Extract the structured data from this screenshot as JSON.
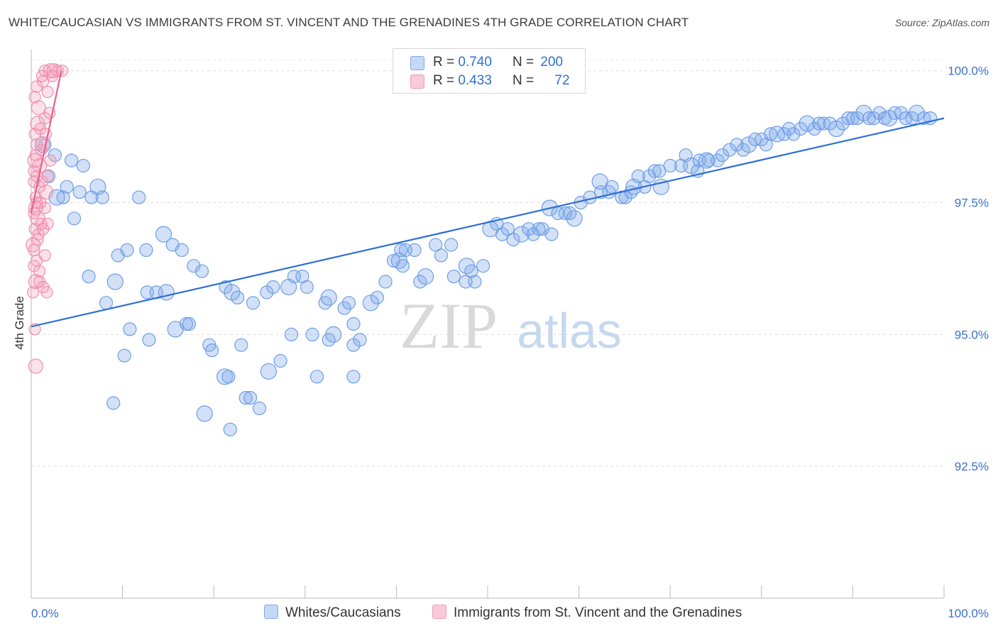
{
  "title": "WHITE/CAUCASIAN VS IMMIGRANTS FROM ST. VINCENT AND THE GRENADINES 4TH GRADE CORRELATION CHART",
  "source": "Source: ZipAtlas.com",
  "watermark": {
    "zip": "ZIP",
    "atlas": "atlas"
  },
  "colors": {
    "blue": "#7fa9e8",
    "blue_line": "#2f6fd3",
    "pink": "#f29ab7",
    "pink_line": "#e8608e",
    "axis_text": "#3a72cc"
  },
  "legend": {
    "rows": [
      {
        "r_label": "R = ",
        "r_value": "0.740",
        "n_label": "N = ",
        "n_value": "200",
        "color": "blue"
      },
      {
        "r_label": "R = ",
        "r_value": "0.433",
        "n_label": "N = ",
        "n_value": "72",
        "color": "pink"
      }
    ]
  },
  "bottom_legend": [
    "Whites/Caucasians",
    "Immigrants from St. Vincent and the Grenadines"
  ],
  "chart_data": {
    "type": "scatter",
    "ylabel": "4th Grade",
    "xlabel": "",
    "xlim": [
      0,
      100
    ],
    "ylim": [
      90.0,
      100.4
    ],
    "x_tick_labels": [
      "0.0%",
      "100.0%"
    ],
    "y_ticks": [
      100.0,
      97.5,
      95.0,
      92.5
    ],
    "y_tick_labels": [
      "100.0%",
      "97.5%",
      "95.0%",
      "92.5%"
    ],
    "grid": true,
    "series": [
      {
        "name": "Whites/Caucasians",
        "color": "#7fa9e8",
        "trend": {
          "x": [
            0,
            100
          ],
          "y": [
            95.15,
            99.1
          ]
        },
        "points": [
          [
            1.3,
            98.6
          ],
          [
            2.6,
            98.4
          ],
          [
            1.9,
            98.0
          ],
          [
            4.4,
            98.3
          ],
          [
            5.7,
            98.2
          ],
          [
            2.8,
            97.6
          ],
          [
            3.5,
            97.6
          ],
          [
            3.9,
            97.8
          ],
          [
            5.3,
            97.7
          ],
          [
            6.6,
            97.6
          ],
          [
            7.3,
            97.8
          ],
          [
            7.8,
            97.6
          ],
          [
            11.8,
            97.6
          ],
          [
            4.7,
            97.2
          ],
          [
            6.3,
            96.1
          ],
          [
            9.2,
            96.0
          ],
          [
            8.2,
            95.6
          ],
          [
            9.5,
            96.5
          ],
          [
            10.5,
            96.6
          ],
          [
            12.6,
            96.6
          ],
          [
            14.5,
            96.9
          ],
          [
            15.5,
            96.7
          ],
          [
            16.5,
            96.6
          ],
          [
            12.7,
            95.8
          ],
          [
            13.7,
            95.8
          ],
          [
            14.8,
            95.8
          ],
          [
            17.8,
            96.3
          ],
          [
            18.7,
            96.2
          ],
          [
            10.8,
            95.1
          ],
          [
            12.9,
            94.9
          ],
          [
            15.8,
            95.1
          ],
          [
            17.0,
            95.2
          ],
          [
            17.3,
            95.2
          ],
          [
            19.5,
            94.8
          ],
          [
            19.8,
            94.7
          ],
          [
            21.2,
            94.2
          ],
          [
            21.6,
            94.2
          ],
          [
            23.0,
            94.8
          ],
          [
            10.2,
            94.6
          ],
          [
            9.0,
            93.7
          ],
          [
            19.0,
            93.5
          ],
          [
            21.8,
            93.2
          ],
          [
            23.5,
            93.8
          ],
          [
            24.0,
            93.8
          ],
          [
            25.0,
            93.6
          ],
          [
            26.0,
            94.3
          ],
          [
            27.3,
            94.5
          ],
          [
            28.5,
            95.0
          ],
          [
            30.8,
            95.0
          ],
          [
            32.6,
            94.9
          ],
          [
            33.1,
            95.0
          ],
          [
            35.3,
            94.8
          ],
          [
            35.3,
            94.2
          ],
          [
            31.3,
            94.2
          ],
          [
            21.3,
            95.9
          ],
          [
            22.0,
            95.8
          ],
          [
            22.6,
            95.7
          ],
          [
            24.3,
            95.6
          ],
          [
            25.8,
            95.8
          ],
          [
            26.5,
            95.9
          ],
          [
            28.2,
            95.9
          ],
          [
            28.8,
            96.1
          ],
          [
            29.7,
            96.1
          ],
          [
            30.2,
            95.9
          ],
          [
            32.2,
            95.6
          ],
          [
            32.6,
            95.7
          ],
          [
            34.3,
            95.5
          ],
          [
            34.8,
            95.6
          ],
          [
            35.3,
            95.2
          ],
          [
            36.0,
            94.9
          ],
          [
            37.2,
            95.6
          ],
          [
            37.9,
            95.7
          ],
          [
            38.8,
            96.0
          ],
          [
            39.7,
            96.4
          ],
          [
            40.7,
            96.3
          ],
          [
            40.3,
            96.4
          ],
          [
            42.0,
            96.6
          ],
          [
            41.0,
            96.6
          ],
          [
            40.5,
            96.6
          ],
          [
            42.6,
            96.0
          ],
          [
            43.2,
            96.1
          ],
          [
            44.3,
            96.7
          ],
          [
            44.9,
            96.5
          ],
          [
            46.0,
            96.7
          ],
          [
            46.3,
            96.1
          ],
          [
            47.7,
            96.3
          ],
          [
            48.2,
            96.2
          ],
          [
            48.6,
            96.0
          ],
          [
            49.5,
            96.3
          ],
          [
            47.6,
            96.0
          ],
          [
            50.3,
            97.0
          ],
          [
            51.0,
            97.1
          ],
          [
            51.6,
            96.9
          ],
          [
            52.2,
            97.0
          ],
          [
            52.8,
            96.8
          ],
          [
            53.7,
            96.9
          ],
          [
            54.5,
            97.0
          ],
          [
            55.0,
            96.9
          ],
          [
            55.6,
            97.0
          ],
          [
            56.0,
            97.0
          ],
          [
            56.8,
            97.4
          ],
          [
            57.0,
            96.9
          ],
          [
            57.7,
            97.3
          ],
          [
            58.5,
            97.3
          ],
          [
            59.0,
            97.3
          ],
          [
            59.5,
            97.2
          ],
          [
            60.2,
            97.5
          ],
          [
            61.2,
            97.6
          ],
          [
            62.4,
            97.7
          ],
          [
            63.3,
            97.7
          ],
          [
            62.3,
            97.9
          ],
          [
            63.6,
            97.8
          ],
          [
            64.7,
            97.6
          ],
          [
            65.1,
            97.6
          ],
          [
            65.7,
            97.7
          ],
          [
            66.0,
            97.8
          ],
          [
            66.5,
            98.0
          ],
          [
            67.2,
            97.8
          ],
          [
            67.7,
            98.0
          ],
          [
            68.3,
            98.1
          ],
          [
            69.0,
            97.8
          ],
          [
            68.8,
            98.1
          ],
          [
            70.0,
            98.2
          ],
          [
            71.2,
            98.2
          ],
          [
            71.7,
            98.4
          ],
          [
            72.3,
            98.2
          ],
          [
            73.0,
            98.1
          ],
          [
            73.2,
            98.3
          ],
          [
            74.2,
            98.3
          ],
          [
            75.2,
            98.3
          ],
          [
            74.0,
            98.3
          ],
          [
            75.7,
            98.4
          ],
          [
            76.5,
            98.5
          ],
          [
            77.3,
            98.6
          ],
          [
            78.0,
            98.5
          ],
          [
            78.6,
            98.6
          ],
          [
            79.3,
            98.7
          ],
          [
            80.0,
            98.7
          ],
          [
            80.5,
            98.6
          ],
          [
            81.0,
            98.8
          ],
          [
            81.7,
            98.8
          ],
          [
            82.5,
            98.8
          ],
          [
            83.0,
            98.9
          ],
          [
            83.5,
            98.8
          ],
          [
            84.3,
            98.9
          ],
          [
            85.0,
            99.0
          ],
          [
            85.8,
            98.9
          ],
          [
            86.3,
            99.0
          ],
          [
            86.8,
            99.0
          ],
          [
            87.5,
            99.0
          ],
          [
            88.2,
            98.9
          ],
          [
            88.9,
            99.0
          ],
          [
            89.5,
            99.1
          ],
          [
            90.0,
            99.1
          ],
          [
            90.5,
            99.1
          ],
          [
            91.2,
            99.2
          ],
          [
            91.8,
            99.1
          ],
          [
            92.3,
            99.1
          ],
          [
            92.9,
            99.2
          ],
          [
            93.5,
            99.1
          ],
          [
            94.0,
            99.1
          ],
          [
            94.6,
            99.2
          ],
          [
            95.3,
            99.2
          ],
          [
            95.8,
            99.1
          ],
          [
            96.5,
            99.1
          ],
          [
            97.0,
            99.2
          ],
          [
            97.8,
            99.1
          ],
          [
            98.5,
            99.1
          ]
        ]
      },
      {
        "name": "Immigrants from St. Vincent and the Grenadines",
        "color": "#f29ab7",
        "trend": {
          "x": [
            0,
            3.3
          ],
          "y": [
            97.3,
            100.0
          ]
        },
        "points": [
          [
            2.5,
            100.0
          ],
          [
            2.9,
            100.0
          ],
          [
            3.4,
            100.0
          ],
          [
            1.3,
            99.8
          ],
          [
            1.5,
            100.0
          ],
          [
            2.1,
            100.0
          ],
          [
            1.8,
            99.6
          ],
          [
            0.6,
            99.7
          ],
          [
            1.5,
            99.1
          ],
          [
            2.0,
            99.2
          ],
          [
            0.7,
            99.0
          ],
          [
            0.4,
            98.8
          ],
          [
            1.4,
            98.6
          ],
          [
            1.1,
            98.5
          ],
          [
            0.5,
            98.4
          ],
          [
            0.9,
            98.2
          ],
          [
            2.1,
            98.3
          ],
          [
            0.6,
            98.0
          ],
          [
            0.3,
            98.1
          ],
          [
            1.2,
            97.9
          ],
          [
            1.6,
            97.7
          ],
          [
            0.5,
            97.6
          ],
          [
            1.0,
            97.5
          ],
          [
            1.5,
            97.4
          ],
          [
            0.3,
            97.3
          ],
          [
            0.7,
            97.2
          ],
          [
            1.1,
            97.1
          ],
          [
            1.8,
            97.1
          ],
          [
            0.4,
            97.0
          ],
          [
            0.8,
            96.9
          ],
          [
            0.2,
            96.7
          ],
          [
            1.5,
            96.5
          ],
          [
            0.6,
            96.4
          ],
          [
            0.3,
            96.3
          ],
          [
            0.9,
            96.2
          ],
          [
            0.5,
            96.0
          ],
          [
            1.3,
            95.9
          ],
          [
            0.2,
            95.8
          ],
          [
            1.7,
            95.8
          ],
          [
            0.4,
            95.1
          ],
          [
            0.5,
            94.4
          ],
          [
            0.3,
            97.9
          ],
          [
            0.6,
            98.6
          ],
          [
            1.0,
            98.9
          ],
          [
            1.6,
            98.8
          ],
          [
            0.8,
            99.3
          ],
          [
            0.4,
            99.5
          ],
          [
            1.2,
            99.9
          ],
          [
            2.3,
            99.9
          ],
          [
            0.9,
            97.8
          ],
          [
            0.5,
            97.4
          ],
          [
            1.3,
            97.0
          ],
          [
            0.7,
            96.8
          ],
          [
            0.3,
            96.6
          ],
          [
            0.9,
            96.0
          ],
          [
            0.4,
            98.3
          ],
          [
            1.8,
            98.0
          ],
          [
            0.6,
            97.5
          ]
        ]
      }
    ]
  }
}
